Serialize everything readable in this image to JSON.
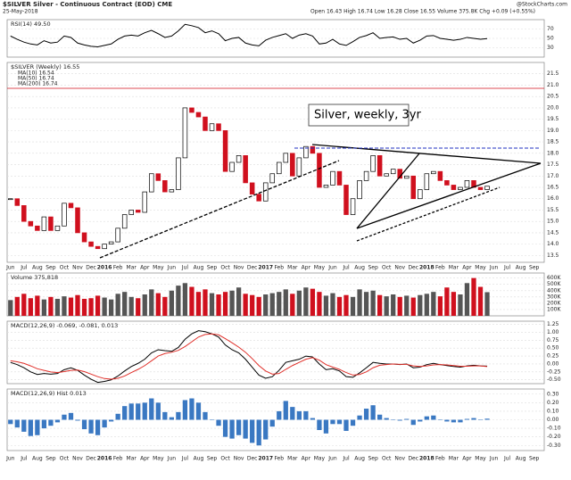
{
  "chart_data": [
    {
      "type": "candlestick",
      "title": "$SILVER Silver - Continuous Contract (EOD) CME",
      "subtitle": "25-May-2018",
      "quote": "Open 16.43 High 16.74 Low 16.28 Close 16.55 Volume 375.8K Chg +0.09 (+0.55%)",
      "source": "@StockCharts.com",
      "annotation": "Silver, weekly, 3yr",
      "name": "$SILVER (Weekly) 16.55",
      "ma_labels": [
        "MA(10) 16.54",
        "MA(50) 16.74",
        "MA(200) 16.74"
      ],
      "up_color": "#000000",
      "down_color": "#d0101e",
      "categories": [
        "Jun",
        null,
        "Jul",
        null,
        "Aug",
        null,
        "Sep",
        null,
        "Oct",
        null,
        "Nov",
        null,
        "Dec",
        null,
        "2016",
        null,
        "Feb",
        null,
        "Mar",
        null,
        "Apr",
        null,
        "May",
        null,
        "Jun",
        null,
        "Jul",
        null,
        "Aug",
        null,
        "Sep",
        null,
        "Oct",
        null,
        "Nov",
        null,
        "Dec",
        null,
        "2017",
        null,
        "Feb",
        null,
        "Mar",
        null,
        "Apr",
        null,
        "May",
        null,
        "Jun",
        null,
        "Jul",
        null,
        "Aug",
        null,
        "Sep",
        null,
        "Oct",
        null,
        "Nov",
        null,
        "Dec",
        null,
        "2018",
        null,
        "Feb",
        null,
        "Mar",
        null,
        "Apr",
        null,
        "May",
        null,
        "Jun",
        null,
        "Jul",
        null,
        "Aug",
        null,
        "Sep",
        null
      ],
      "values": [
        16.0,
        15.7,
        15.0,
        14.8,
        14.6,
        15.2,
        14.6,
        14.8,
        15.8,
        15.6,
        14.5,
        14.1,
        13.9,
        13.8,
        14.0,
        14.1,
        14.7,
        15.3,
        15.5,
        15.4,
        16.3,
        17.1,
        16.8,
        16.3,
        16.4,
        17.8,
        20.0,
        19.8,
        19.6,
        19.0,
        19.3,
        19.0,
        17.2,
        17.6,
        17.9,
        16.7,
        16.2,
        15.9,
        16.7,
        17.1,
        17.6,
        18.0,
        17.0,
        17.8,
        18.3,
        18.0,
        16.5,
        16.6,
        17.2,
        16.6,
        15.3,
        16.0,
        16.8,
        17.2,
        17.9,
        17.0,
        17.1,
        17.3,
        16.9,
        17.0,
        16.0,
        16.4,
        17.1,
        17.2,
        16.8,
        16.6,
        16.4,
        16.5,
        16.8,
        16.5,
        16.4,
        16.55,
        null,
        null,
        null,
        null,
        null,
        null,
        null,
        null
      ],
      "ylim": [
        13.2,
        22.0
      ],
      "yticks": [
        13.5,
        {
          "value": 14,
          "label": "14.0"
        },
        14.5,
        {
          "value": 15,
          "label": "15.0"
        },
        15.5,
        {
          "value": 16,
          "label": "16.0"
        },
        16.5,
        {
          "value": 17,
          "label": "17.0"
        },
        17.5,
        {
          "value": 18,
          "label": "18.0"
        },
        18.5,
        {
          "value": 19,
          "label": "19.0"
        },
        19.5,
        {
          "value": 20,
          "label": "20.0"
        },
        20.5,
        {
          "value": 21,
          "label": "21.0"
        },
        21.5
      ],
      "grid": true
    },
    {
      "type": "line",
      "label": "RSI(14) 49.50",
      "color": "#000000",
      "values": [
        55,
        48,
        42,
        38,
        36,
        45,
        40,
        42,
        55,
        52,
        40,
        36,
        33,
        32,
        35,
        38,
        48,
        55,
        57,
        55,
        62,
        67,
        60,
        52,
        55,
        66,
        80,
        77,
        73,
        62,
        66,
        60,
        45,
        50,
        52,
        40,
        36,
        34,
        46,
        52,
        56,
        60,
        50,
        57,
        60,
        55,
        38,
        40,
        48,
        38,
        35,
        43,
        52,
        56,
        62,
        50,
        52,
        53,
        48,
        50,
        40,
        46,
        55,
        56,
        50,
        48,
        46,
        48,
        52,
        50,
        48,
        49.5,
        null,
        null,
        null,
        null,
        null,
        null,
        null,
        null
      ],
      "ylim": [
        10,
        90
      ],
      "yticks": [
        30,
        50,
        70
      ],
      "grid": true
    },
    {
      "type": "bar",
      "label": "Volume 375,818",
      "values": [
        250000,
        300000,
        350000,
        280000,
        320000,
        260000,
        300000,
        270000,
        310000,
        290000,
        330000,
        270000,
        280000,
        320000,
        290000,
        260000,
        350000,
        380000,
        300000,
        280000,
        340000,
        420000,
        360000,
        300000,
        400000,
        480000,
        520000,
        460000,
        380000,
        420000,
        360000,
        340000,
        380000,
        400000,
        450000,
        350000,
        330000,
        300000,
        340000,
        360000,
        380000,
        420000,
        350000,
        400000,
        450000,
        430000,
        380000,
        320000,
        360000,
        300000,
        330000,
        300000,
        420000,
        380000,
        400000,
        330000,
        310000,
        340000,
        300000,
        320000,
        290000,
        330000,
        350000,
        380000,
        310000,
        450000,
        380000,
        340000,
        520000,
        600000,
        460000,
        375818,
        null,
        null,
        null,
        null,
        null,
        null,
        null,
        null
      ],
      "ylim": [
        0,
        680000
      ],
      "yticks": [
        {
          "value": 100000,
          "label": "100K"
        },
        {
          "value": 200000,
          "label": "200K"
        },
        {
          "value": 300000,
          "label": "300K"
        },
        {
          "value": 400000,
          "label": "400K"
        },
        {
          "value": 500000,
          "label": "500K"
        },
        {
          "value": 600000,
          "label": "600K"
        }
      ],
      "grid": true
    },
    {
      "type": "line",
      "label": "MACD(12,26,9) -0.069, -0.081, 0.013",
      "series": [
        {
          "name": "MACD",
          "color": "#000000",
          "values": [
            0.05,
            -0.02,
            -0.12,
            -0.25,
            -0.33,
            -0.3,
            -0.32,
            -0.3,
            -0.18,
            -0.12,
            -0.2,
            -0.35,
            -0.48,
            -0.58,
            -0.55,
            -0.5,
            -0.38,
            -0.22,
            -0.08,
            0.02,
            0.15,
            0.35,
            0.45,
            0.42,
            0.4,
            0.52,
            0.78,
            0.95,
            1.05,
            1.02,
            0.95,
            0.85,
            0.6,
            0.45,
            0.35,
            0.15,
            -0.1,
            -0.35,
            -0.45,
            -0.4,
            -0.2,
            0.05,
            0.1,
            0.15,
            0.25,
            0.22,
            0.0,
            -0.18,
            -0.15,
            -0.22,
            -0.4,
            -0.42,
            -0.28,
            -0.12,
            0.05,
            0.02,
            0.0,
            0.0,
            -0.02,
            0.0,
            -0.12,
            -0.1,
            -0.02,
            0.02,
            -0.02,
            -0.05,
            -0.08,
            -0.1,
            -0.06,
            -0.04,
            -0.06,
            -0.069,
            null,
            null,
            null,
            null,
            null,
            null,
            null,
            null
          ]
        },
        {
          "name": "Signal",
          "color": "#e0302a",
          "values": [
            0.1,
            0.07,
            0.02,
            -0.06,
            -0.15,
            -0.2,
            -0.25,
            -0.27,
            -0.24,
            -0.2,
            -0.19,
            -0.24,
            -0.32,
            -0.4,
            -0.46,
            -0.48,
            -0.45,
            -0.38,
            -0.27,
            -0.17,
            -0.05,
            0.1,
            0.25,
            0.33,
            0.37,
            0.43,
            0.55,
            0.7,
            0.85,
            0.93,
            0.95,
            0.92,
            0.8,
            0.67,
            0.53,
            0.37,
            0.17,
            -0.05,
            -0.22,
            -0.32,
            -0.3,
            -0.17,
            -0.05,
            0.05,
            0.15,
            0.2,
            0.12,
            -0.02,
            -0.1,
            -0.17,
            -0.27,
            -0.35,
            -0.33,
            -0.25,
            -0.12,
            -0.04,
            -0.02,
            0.0,
            -0.01,
            -0.01,
            -0.06,
            -0.08,
            -0.06,
            -0.03,
            -0.02,
            -0.03,
            -0.05,
            -0.07,
            -0.07,
            -0.06,
            -0.06,
            -0.081,
            null,
            null,
            null,
            null,
            null,
            null,
            null,
            null
          ]
        }
      ],
      "ylim": [
        -0.62,
        1.35
      ],
      "yticks": [
        {
          "value": -0.5,
          "label": "-0.50"
        },
        -0.25,
        {
          "value": 0,
          "label": "0.00"
        },
        0.25,
        {
          "value": 0.5,
          "label": "0.50"
        },
        0.75,
        {
          "value": 1,
          "label": "1.00"
        },
        1.25
      ],
      "grid": true
    },
    {
      "type": "bar",
      "label": "MACD(12,26,9) Hist 0.013",
      "color": "#3a78c2",
      "values": [
        -0.05,
        -0.09,
        -0.14,
        -0.19,
        -0.18,
        -0.1,
        -0.07,
        -0.03,
        0.06,
        0.08,
        -0.01,
        -0.11,
        -0.16,
        -0.18,
        -0.09,
        -0.02,
        0.07,
        0.16,
        0.19,
        0.19,
        0.2,
        0.25,
        0.2,
        0.09,
        0.03,
        0.09,
        0.23,
        0.25,
        0.2,
        0.09,
        0.0,
        -0.07,
        -0.2,
        -0.22,
        -0.18,
        -0.22,
        -0.27,
        -0.3,
        -0.23,
        -0.08,
        0.1,
        0.22,
        0.15,
        0.1,
        0.1,
        0.02,
        -0.12,
        -0.16,
        -0.05,
        -0.05,
        -0.13,
        -0.07,
        0.05,
        0.13,
        0.17,
        0.06,
        0.02,
        0.0,
        -0.01,
        0.01,
        -0.06,
        -0.02,
        0.04,
        0.05,
        0.0,
        -0.02,
        -0.03,
        -0.03,
        0.01,
        0.02,
        0.0,
        0.013,
        null,
        null,
        null,
        null,
        null,
        null,
        null,
        null
      ],
      "ylim": [
        -0.36,
        0.36
      ],
      "yticks": [
        {
          "value": -0.3,
          "label": "-0.30"
        },
        {
          "value": -0.2,
          "label": "-0.20"
        },
        {
          "value": -0.1,
          "label": "-0.10"
        },
        {
          "value": 0,
          "label": "0.00"
        },
        {
          "value": 0.1,
          "label": "0.10"
        },
        {
          "value": 0.2,
          "label": "0.20"
        },
        {
          "value": 0.3,
          "label": "0.30"
        }
      ],
      "grid": true
    }
  ]
}
